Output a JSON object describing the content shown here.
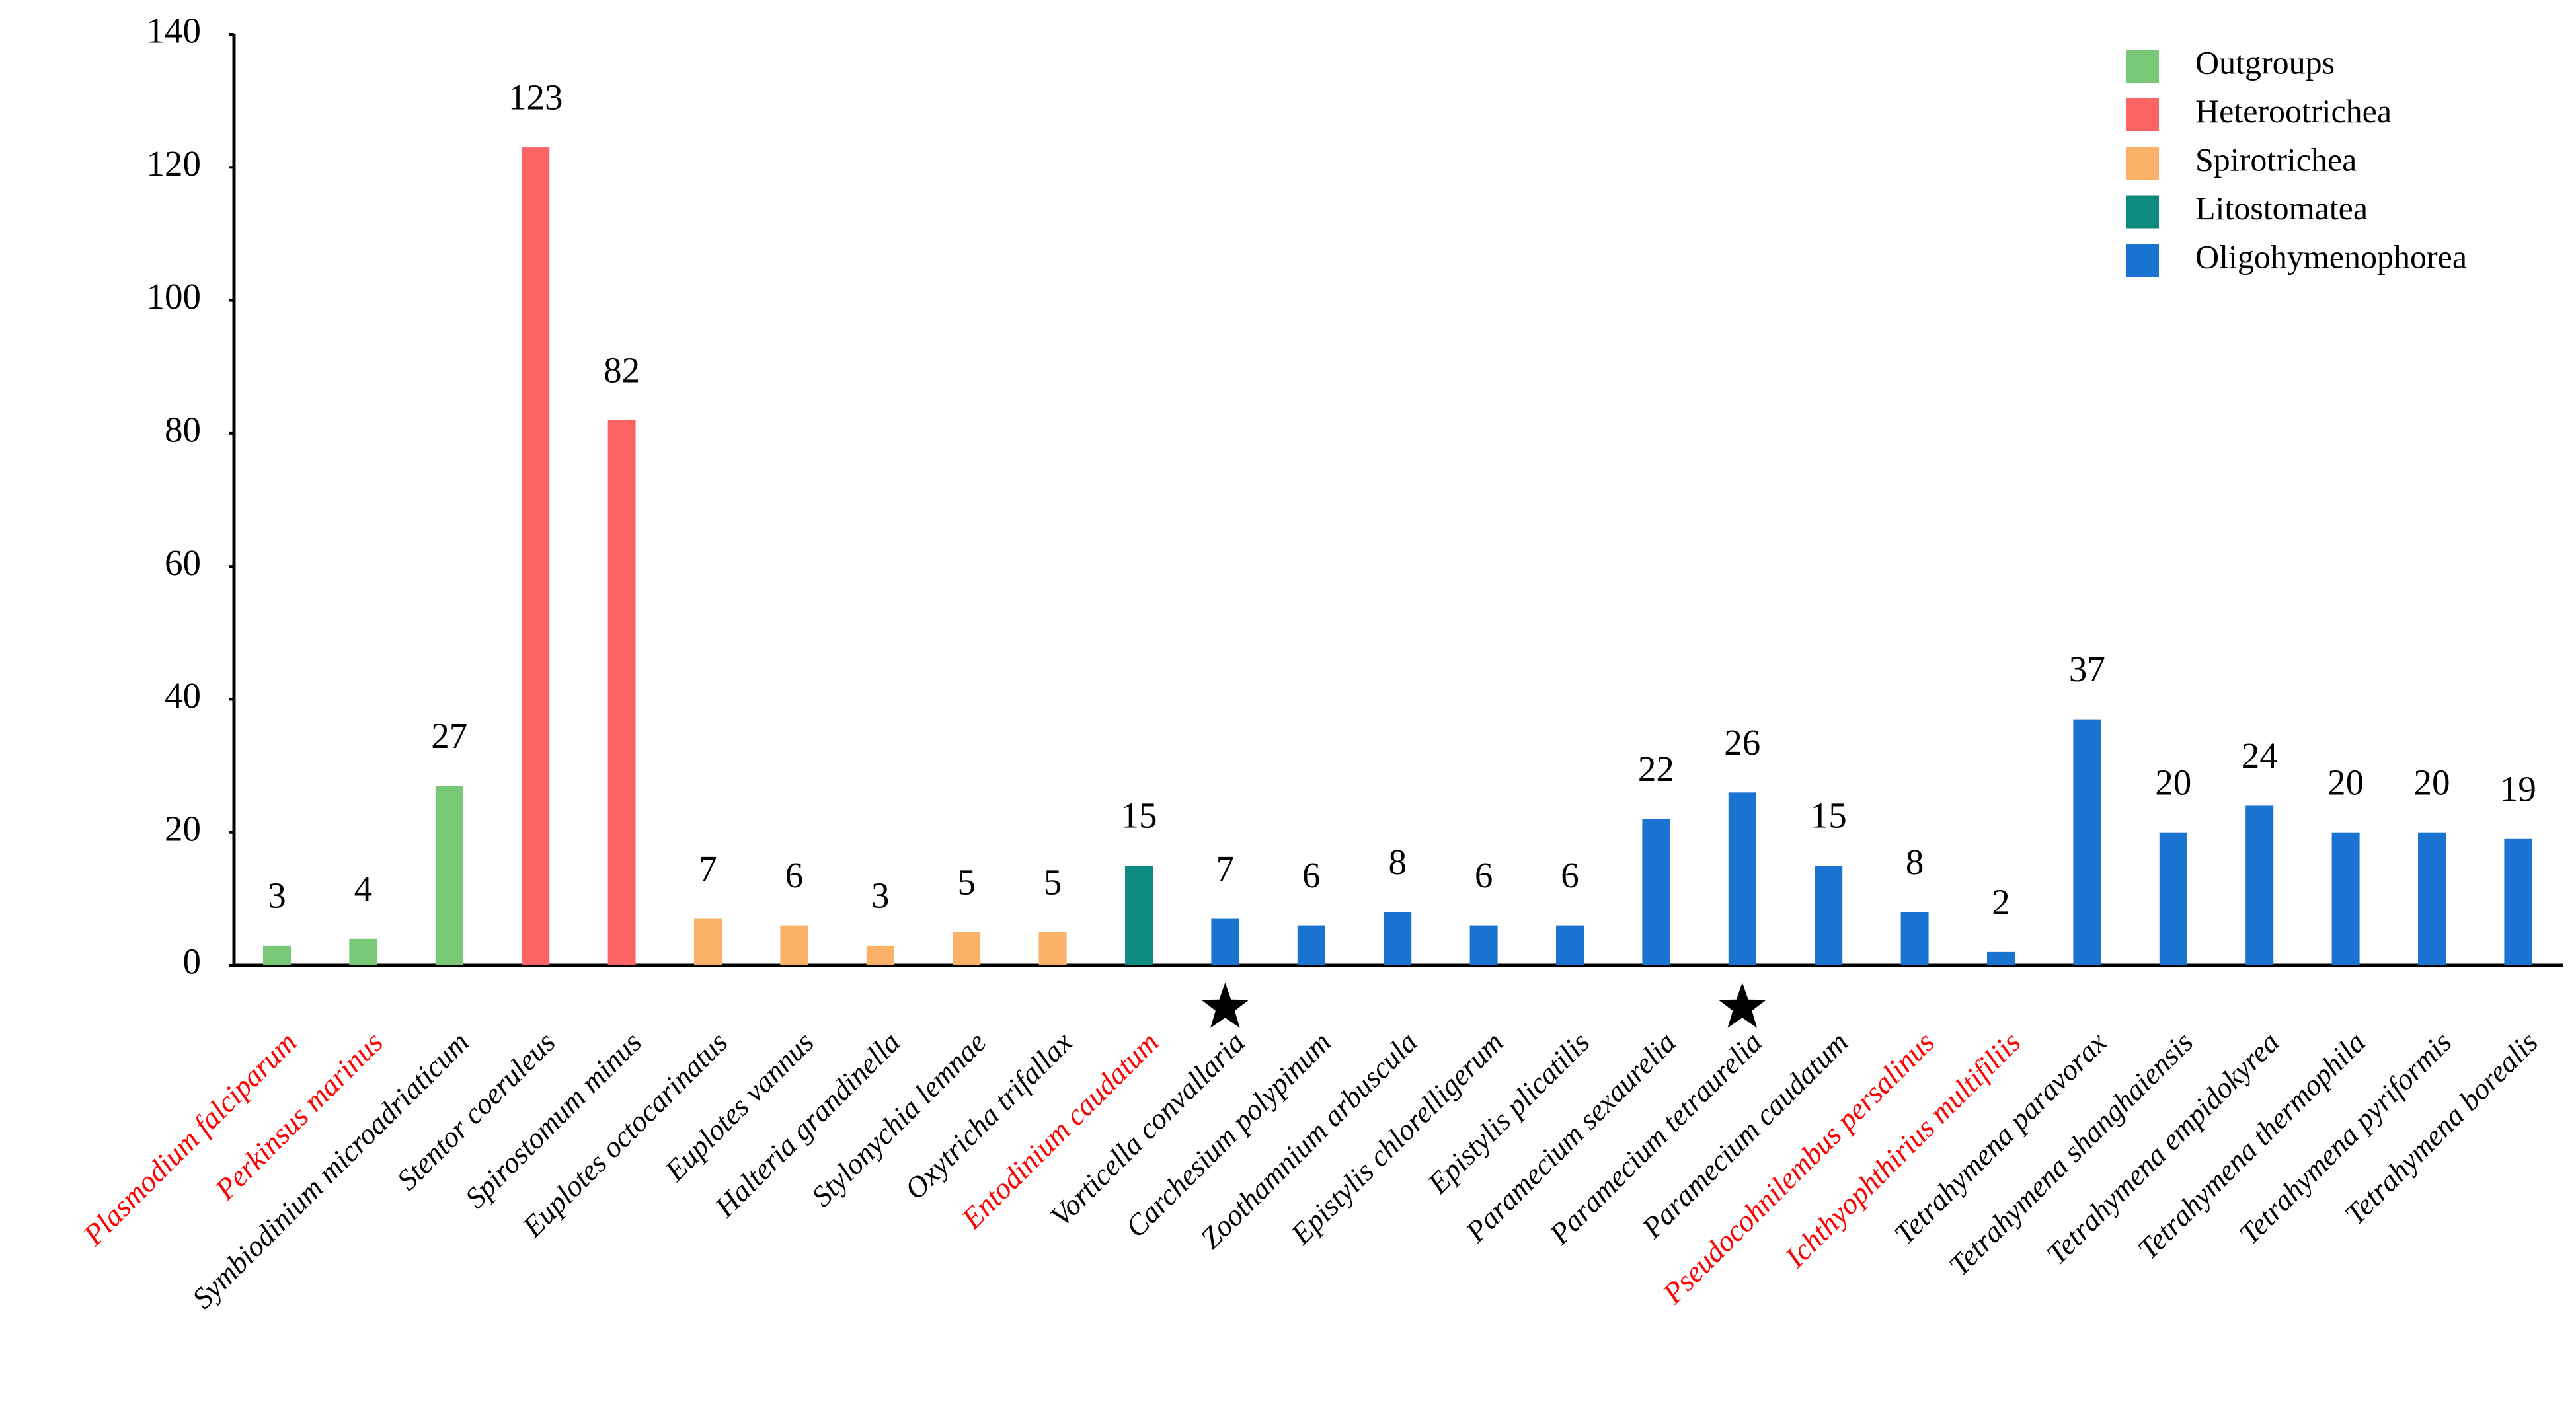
{
  "chart_data": {
    "type": "bar",
    "categories": [
      "Plasmodium falciparum",
      "Perkinsus marinus",
      "Symbiodinium microadriaticum",
      "Stentor coeruleus",
      "Spirostomum minus",
      "Euplotes octocarinatus",
      "Euplotes vannus",
      "Halteria grandinella",
      "Stylonychia lemnae",
      "Oxytricha trifallax",
      "Entodinium caudatum",
      "Vorticella convallaria",
      "Carchesium polypinum",
      "Zoothamnium arbuscula",
      "Epistylis chlorelligerum",
      "Epistylis plicatilis",
      "Paramecium sexaurelia",
      "Paramecium tetraurelia",
      "Paramecium caudatum",
      "Pseudocohnilembus persalinus",
      "Ichthyophthirius multifiliis",
      "Tetrahymena paravorax",
      "Tetrahymena shanghaiensis",
      "Tetrahymena empidokyrea",
      "Tetrahymena thermophila",
      "Tetrahymena pyriformis",
      "Tetrahymena borealis"
    ],
    "category_colors": [
      "#ff0000",
      "#ff0000",
      "#000000",
      "#000000",
      "#000000",
      "#000000",
      "#000000",
      "#000000",
      "#000000",
      "#000000",
      "#ff0000",
      "#000000",
      "#000000",
      "#000000",
      "#000000",
      "#000000",
      "#000000",
      "#000000",
      "#000000",
      "#ff0000",
      "#ff0000",
      "#000000",
      "#000000",
      "#000000",
      "#000000",
      "#000000",
      "#000000"
    ],
    "series": [
      {
        "name": "Outgroups",
        "color": "#78c878",
        "values": [
          3,
          4,
          27,
          null,
          null,
          null,
          null,
          null,
          null,
          null,
          null,
          null,
          null,
          null,
          null,
          null,
          null,
          null,
          null,
          null,
          null,
          null,
          null,
          null,
          null,
          null,
          null
        ]
      },
      {
        "name": "Heterootrichea",
        "color": "#fc6464",
        "values": [
          null,
          null,
          null,
          123,
          82,
          null,
          null,
          null,
          null,
          null,
          null,
          null,
          null,
          null,
          null,
          null,
          null,
          null,
          null,
          null,
          null,
          null,
          null,
          null,
          null,
          null,
          null
        ]
      },
      {
        "name": "Spirotrichea",
        "color": "#fbb167",
        "values": [
          null,
          null,
          null,
          null,
          null,
          7,
          6,
          3,
          5,
          5,
          null,
          null,
          null,
          null,
          null,
          null,
          null,
          null,
          null,
          null,
          null,
          null,
          null,
          null,
          null,
          null,
          null
        ]
      },
      {
        "name": "Litostomatea",
        "color": "#0e8b80",
        "values": [
          null,
          null,
          null,
          null,
          null,
          null,
          null,
          null,
          null,
          null,
          15,
          null,
          null,
          null,
          null,
          null,
          null,
          null,
          null,
          null,
          null,
          null,
          null,
          null,
          null,
          null,
          null
        ]
      },
      {
        "name": "Oligohymenophorea",
        "color": "#1a73d0",
        "values": [
          null,
          null,
          null,
          null,
          null,
          null,
          null,
          null,
          null,
          null,
          null,
          7,
          6,
          8,
          6,
          6,
          22,
          26,
          15,
          8,
          2,
          37,
          20,
          24,
          20,
          20,
          19
        ]
      }
    ],
    "ylim": [
      0,
      140
    ],
    "yticks": [
      0,
      20,
      40,
      60,
      80,
      100,
      120,
      140
    ],
    "grid": false,
    "legend": "top-right"
  }
}
